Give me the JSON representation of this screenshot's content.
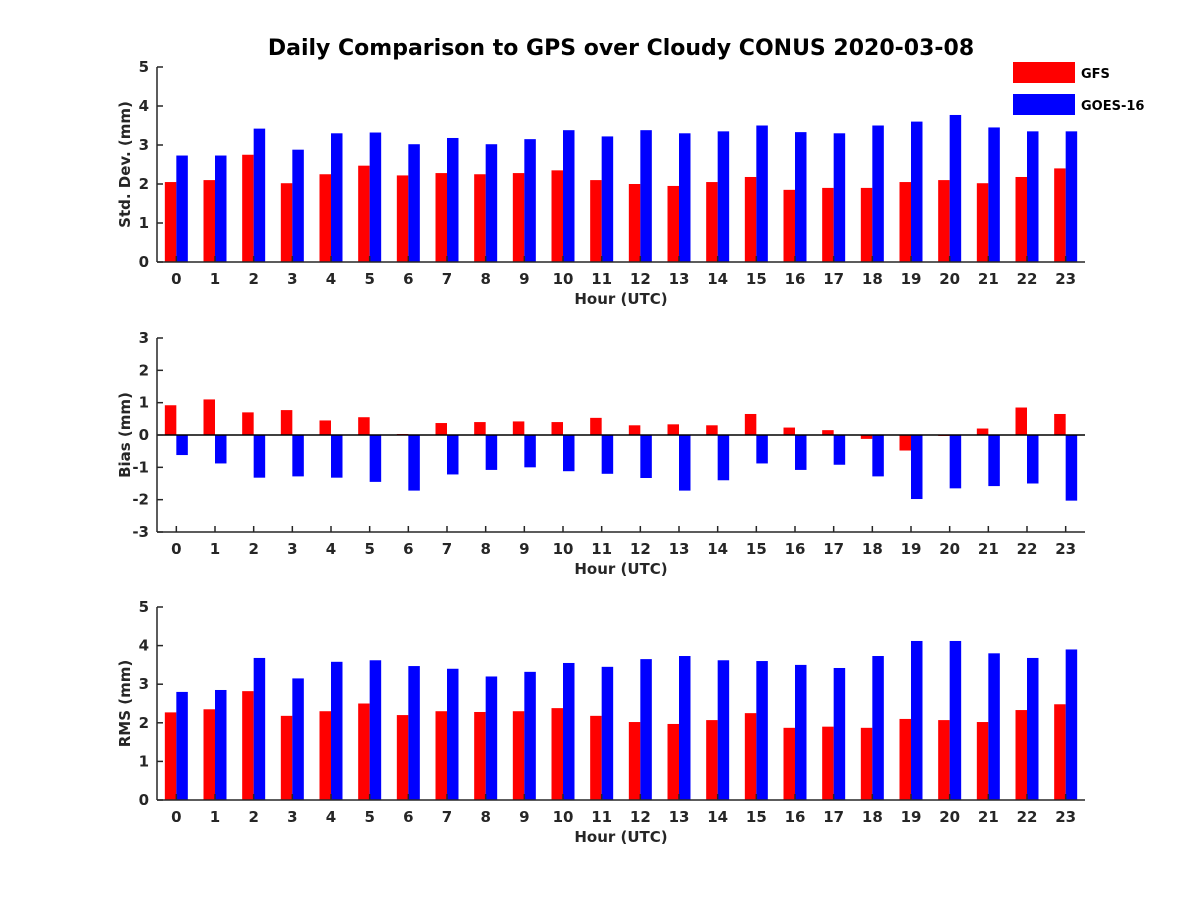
{
  "chart_data": {
    "type": "bar",
    "title": "Daily Comparison to GPS over Cloudy CONUS 2020-03-08",
    "categories": [
      "0",
      "1",
      "2",
      "3",
      "4",
      "5",
      "6",
      "7",
      "8",
      "9",
      "10",
      "11",
      "12",
      "13",
      "14",
      "15",
      "16",
      "17",
      "18",
      "19",
      "20",
      "21",
      "22",
      "23"
    ],
    "legend": {
      "placement": "top-right",
      "entries": [
        {
          "name": "GFS",
          "color": "#ff0000"
        },
        {
          "name": "GOES-16",
          "color": "#0000ff"
        }
      ]
    },
    "panels": [
      {
        "id": "std",
        "xlabel": "Hour (UTC)",
        "ylabel": "Std. Dev. (mm)",
        "ylim": [
          0,
          5
        ],
        "yticks": [
          "0",
          "1",
          "2",
          "3",
          "4",
          "5"
        ],
        "series": [
          {
            "name": "GFS",
            "color": "#ff0000",
            "values": [
              2.05,
              2.1,
              2.75,
              2.02,
              2.25,
              2.47,
              2.22,
              2.28,
              2.25,
              2.28,
              2.35,
              2.1,
              2.0,
              1.95,
              2.05,
              2.18,
              1.85,
              1.9,
              1.9,
              2.05,
              2.1,
              2.02,
              2.18,
              2.4
            ]
          },
          {
            "name": "GOES-16",
            "color": "#0000ff",
            "values": [
              2.73,
              2.73,
              3.42,
              2.88,
              3.3,
              3.32,
              3.02,
              3.18,
              3.02,
              3.15,
              3.38,
              3.22,
              3.38,
              3.3,
              3.35,
              3.5,
              3.33,
              3.3,
              3.5,
              3.6,
              3.77,
              3.45,
              3.35,
              3.35
            ]
          }
        ]
      },
      {
        "id": "bias",
        "xlabel": "Hour (UTC)",
        "ylabel": "Bias (mm)",
        "ylim": [
          -3,
          3
        ],
        "yticks": [
          "-3",
          "-2",
          "-1",
          "0",
          "1",
          "2",
          "3"
        ],
        "series": [
          {
            "name": "GFS",
            "color": "#ff0000",
            "values": [
              0.92,
              1.1,
              0.7,
              0.77,
              0.45,
              0.55,
              0.03,
              0.37,
              0.4,
              0.42,
              0.4,
              0.53,
              0.3,
              0.33,
              0.3,
              0.65,
              0.23,
              0.15,
              -0.12,
              -0.48,
              -0.03,
              0.2,
              0.85,
              0.65
            ]
          },
          {
            "name": "GOES-16",
            "color": "#0000ff",
            "values": [
              -0.62,
              -0.88,
              -1.32,
              -1.28,
              -1.32,
              -1.45,
              -1.72,
              -1.22,
              -1.08,
              -1.0,
              -1.12,
              -1.2,
              -1.33,
              -1.72,
              -1.4,
              -0.88,
              -1.08,
              -0.92,
              -1.28,
              -1.98,
              -1.65,
              -1.58,
              -1.5,
              -2.03
            ]
          }
        ]
      },
      {
        "id": "rms",
        "xlabel": "Hour (UTC)",
        "ylabel": "RMS (mm)",
        "ylim": [
          0,
          5
        ],
        "yticks": [
          "0",
          "1",
          "2",
          "3",
          "4",
          "5"
        ],
        "series": [
          {
            "name": "GFS",
            "color": "#ff0000",
            "values": [
              2.27,
              2.35,
              2.82,
              2.18,
              2.3,
              2.5,
              2.2,
              2.3,
              2.28,
              2.3,
              2.38,
              2.18,
              2.02,
              1.97,
              2.07,
              2.25,
              1.87,
              1.9,
              1.87,
              2.1,
              2.07,
              2.02,
              2.33,
              2.48
            ]
          },
          {
            "name": "GOES-16",
            "color": "#0000ff",
            "values": [
              2.8,
              2.85,
              3.68,
              3.15,
              3.58,
              3.62,
              3.47,
              3.4,
              3.2,
              3.32,
              3.55,
              3.45,
              3.65,
              3.73,
              3.62,
              3.6,
              3.5,
              3.42,
              3.73,
              4.12,
              4.12,
              3.8,
              3.68,
              3.9
            ]
          }
        ]
      }
    ]
  }
}
